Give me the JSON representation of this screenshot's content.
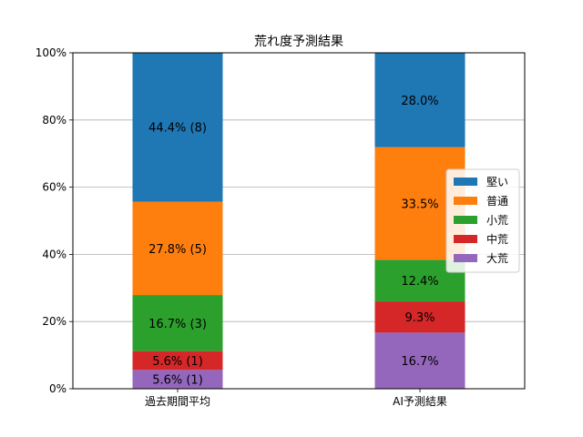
{
  "chart_data": {
    "type": "bar",
    "stacked": true,
    "title": "荒れ度予測結果",
    "xlabel": "",
    "ylabel": "",
    "ylim": [
      0,
      100
    ],
    "yticks": [
      "0%",
      "20%",
      "40%",
      "60%",
      "80%",
      "100%"
    ],
    "yticks_values": [
      0,
      20,
      40,
      60,
      80,
      100
    ],
    "categories": [
      "過去期間平均",
      "AI予測結果"
    ],
    "grid": "horizontal",
    "legend_position": "center-right",
    "series": [
      {
        "name": "大荒",
        "color": "#9467bd",
        "values": [
          5.6,
          16.7
        ],
        "labels": [
          "5.6% (1)",
          "16.7%"
        ]
      },
      {
        "name": "中荒",
        "color": "#d62728",
        "values": [
          5.6,
          9.3
        ],
        "labels": [
          "5.6% (1)",
          "9.3%"
        ]
      },
      {
        "name": "小荒",
        "color": "#2ca02c",
        "values": [
          16.7,
          12.4
        ],
        "labels": [
          "16.7% (3)",
          "12.4%"
        ]
      },
      {
        "name": "普通",
        "color": "#ff7f0e",
        "values": [
          27.8,
          33.5
        ],
        "labels": [
          "27.8% (5)",
          "33.5%"
        ]
      },
      {
        "name": "堅い",
        "color": "#1f77b4",
        "values": [
          44.4,
          28.0
        ],
        "labels": [
          "44.4% (8)",
          "28.0%"
        ]
      }
    ]
  }
}
